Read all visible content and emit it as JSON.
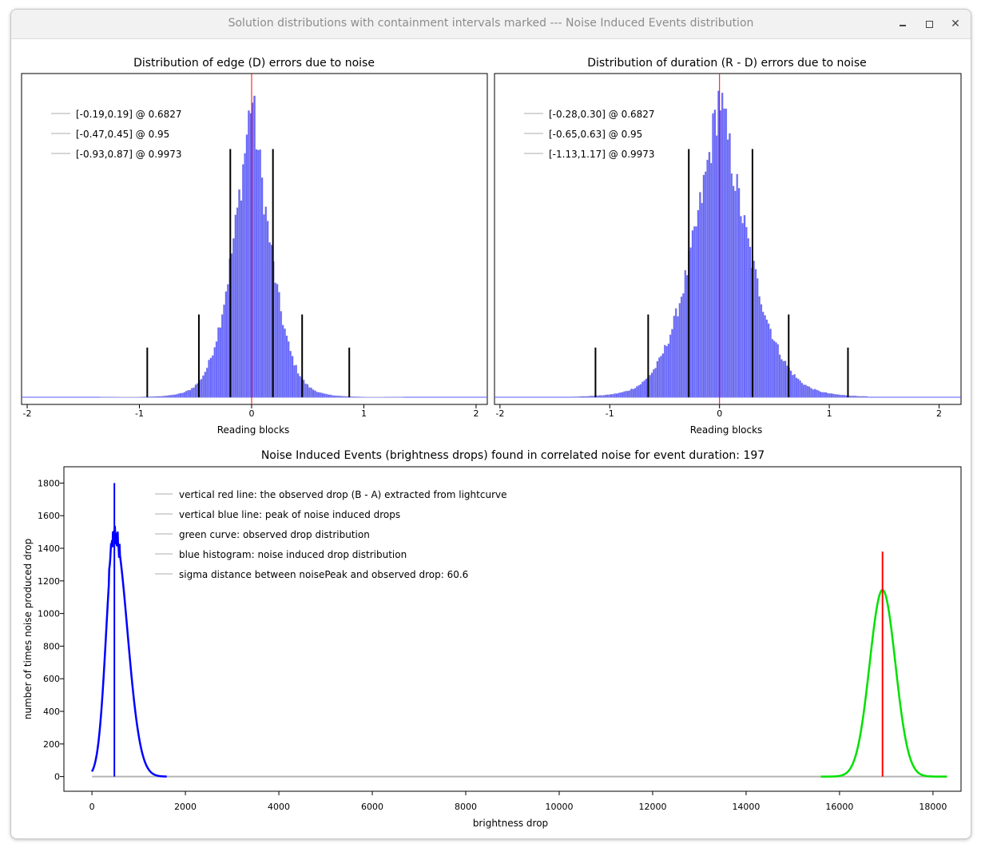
{
  "window": {
    "title": "Solution distributions with containment intervals marked --- Noise Induced Events distribution"
  },
  "plot_edge": {
    "title": "Distribution of edge (D) errors due to noise",
    "xlabel": "Reading blocks",
    "xticks": [
      "-2",
      "-1",
      "0",
      "1",
      "2"
    ],
    "legend": [
      "[-0.19,0.19] @ 0.6827",
      "[-0.47,0.45] @ 0.95",
      "[-0.93,0.87] @ 0.9973"
    ]
  },
  "plot_duration": {
    "title": "Distribution of duration (R - D) errors due to noise",
    "xlabel": "Reading blocks",
    "xticks": [
      "-2",
      "-1",
      "0",
      "1",
      "2"
    ],
    "legend": [
      "[-0.28,0.30] @ 0.6827",
      "[-0.65,0.63] @ 0.95",
      "[-1.13,1.17] @ 0.9973"
    ]
  },
  "plot_noise": {
    "title": "Noise Induced Events (brightness drops) found in correlated noise for event duration: 197",
    "xlabel": "brightness drop",
    "ylabel": "number of times noise produced drop",
    "xticks": [
      "0",
      "2000",
      "4000",
      "6000",
      "8000",
      "10000",
      "12000",
      "14000",
      "16000",
      "18000"
    ],
    "yticks": [
      "0",
      "200",
      "400",
      "600",
      "800",
      "1000",
      "1200",
      "1400",
      "1600",
      "1800"
    ],
    "legend": [
      "vertical red line: the observed drop (B - A) extracted from lightcurve",
      "vertical blue line: peak of noise induced drops",
      "green curve: observed drop distribution",
      "blue histogram: noise induced drop distribution",
      "sigma distance between noisePeak and observed drop: 60.6"
    ]
  },
  "chart_data": [
    {
      "type": "bar",
      "title": "Distribution of edge (D) errors due to noise",
      "xlabel": "Reading blocks",
      "ylabel": "",
      "xlim": [
        -2.05,
        2.1
      ],
      "center": 0.0,
      "histogram_sigma_left": 0.19,
      "histogram_sigma_right": 0.19,
      "intervals": [
        {
          "label": "[-0.19,0.19] @ 0.6827",
          "low": -0.19,
          "high": 0.19,
          "marker_height": 0.75
        },
        {
          "label": "[-0.47,0.45] @ 0.95",
          "low": -0.47,
          "high": 0.45,
          "marker_height": 0.25
        },
        {
          "label": "[-0.93,0.87] @ 0.9973",
          "low": -0.93,
          "high": 0.87,
          "marker_height": 0.15
        }
      ],
      "colors": {
        "histogram": "#5b5bff",
        "zero_line": "#ff0000",
        "interval": "#000000"
      }
    },
    {
      "type": "bar",
      "title": "Distribution of duration (R - D) errors due to noise",
      "xlabel": "Reading blocks",
      "ylabel": "",
      "xlim": [
        -2.05,
        2.2
      ],
      "center": 0.0,
      "histogram_sigma_left": 0.28,
      "histogram_sigma_right": 0.3,
      "intervals": [
        {
          "label": "[-0.28,0.30] @ 0.6827",
          "low": -0.28,
          "high": 0.3,
          "marker_height": 0.75
        },
        {
          "label": "[-0.65,0.63] @ 0.95",
          "low": -0.65,
          "high": 0.63,
          "marker_height": 0.25
        },
        {
          "label": "[-1.13,1.17] @ 0.9973",
          "low": -1.13,
          "high": 1.17,
          "marker_height": 0.15
        }
      ],
      "colors": {
        "histogram": "#5b5bff",
        "zero_line": "#ff0000",
        "interval": "#000000"
      }
    },
    {
      "type": "line",
      "title": "Noise Induced Events (brightness drops) found in correlated noise for event duration: 197",
      "xlabel": "brightness drop",
      "ylabel": "number of times noise produced drop",
      "xlim": [
        -600,
        18600
      ],
      "ylim": [
        -90,
        1900
      ],
      "series": [
        {
          "name": "blue histogram: noise induced drop distribution",
          "color": "#0000ff",
          "peak_x": 480,
          "peak_y": 1490,
          "sigma": 230,
          "x_start": 0,
          "x_end": 1600
        },
        {
          "name": "green curve: observed drop distribution",
          "color": "#00e000",
          "peak_x": 16920,
          "peak_y": 1145,
          "sigma": 275,
          "x_start": 15600,
          "x_end": 18300
        }
      ],
      "vlines": [
        {
          "name": "vertical blue line: peak of noise induced drops",
          "x": 480,
          "y_top": 1800,
          "color": "#0000ff"
        },
        {
          "name": "vertical red line: the observed drop (B - A) extracted from lightcurve",
          "x": 16920,
          "y_top": 1380,
          "color": "#ff0000"
        }
      ],
      "baseline": {
        "x_start": 0,
        "x_end": 18300,
        "y": 0,
        "color": "#b4b4b4"
      },
      "sigma_distance": 60.6
    }
  ]
}
